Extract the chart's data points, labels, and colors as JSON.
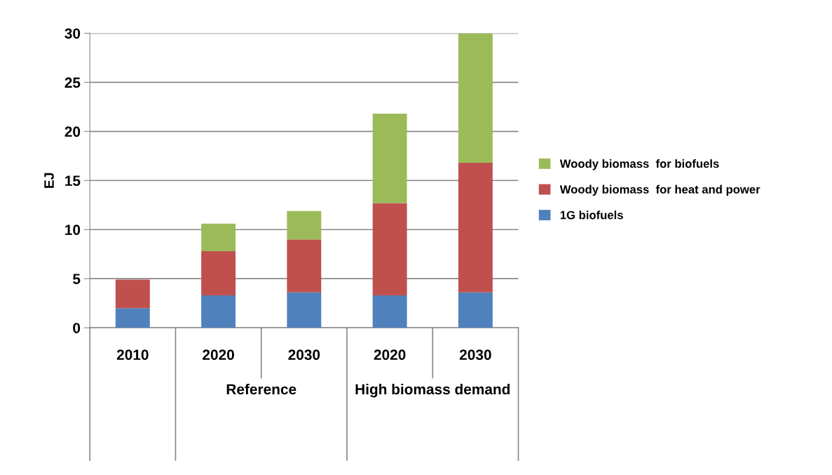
{
  "chart_data": {
    "type": "bar",
    "stacked": true,
    "ylabel": "EJ",
    "categories": [
      "2010",
      "2020",
      "2030",
      "2020",
      "2030"
    ],
    "series": [
      {
        "name": "1G biofuels",
        "color": "#4f81bd",
        "values": [
          2.0,
          3.3,
          3.6,
          3.3,
          3.6
        ]
      },
      {
        "name": "Woody biomass  for heat and power",
        "color": "#c0504d",
        "values": [
          2.9,
          4.5,
          5.4,
          9.4,
          13.2
        ]
      },
      {
        "name": "Woody biomass  for biofuels",
        "color": "#9bbb59",
        "values": [
          null,
          2.8,
          2.9,
          9.1,
          13.2
        ]
      }
    ],
    "annotations": [
      "Reference",
      "High biomass demand"
    ],
    "ylim": [
      0,
      30
    ],
    "yticks": [
      0,
      5,
      10,
      15,
      20,
      25,
      30
    ],
    "grid": "y",
    "legend": "right"
  }
}
